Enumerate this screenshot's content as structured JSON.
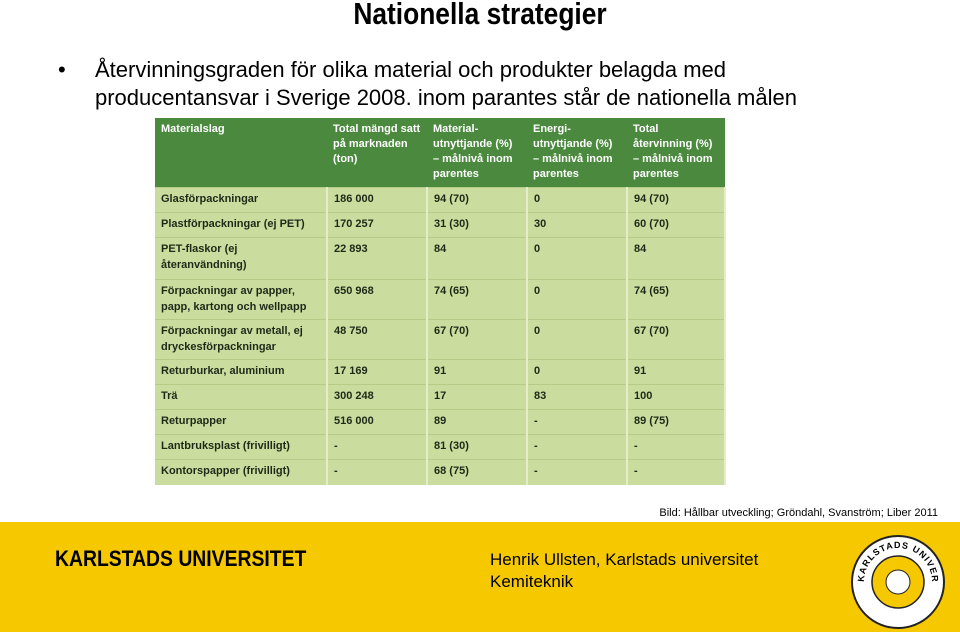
{
  "title": "Nationella strategier",
  "bullet": "Återvinningsgraden för olika material och produkter belagda med producentansvar i Sverige 2008. inom parantes står de nationella målen",
  "table": {
    "header": [
      "Materialslag",
      "Total mängd satt på marknaden (ton)",
      "Material-utnyttjande (%) – målnivå inom parentes",
      "Energi-utnyttjande (%) – målnivå inom parentes",
      "Total återvinning (%) – målnivå inom parentes"
    ],
    "rows": [
      [
        "Glasförpackningar",
        "186 000",
        "94 (70)",
        "0",
        "94 (70)"
      ],
      [
        "Plastförpackningar (ej PET)",
        "170 257",
        "31 (30)",
        "30",
        "60 (70)"
      ],
      [
        "PET-flaskor (ej återanvändning)",
        "22 893",
        "84",
        "0",
        "84"
      ],
      [
        "Förpackningar av papper, papp, kartong och wellpapp",
        "650 968",
        "74 (65)",
        "0",
        "74 (65)"
      ],
      [
        "Förpackningar av metall, ej dryckesförpackningar",
        "48 750",
        "67 (70)",
        "0",
        "67 (70)"
      ],
      [
        "Returburkar, aluminium",
        "17 169",
        "91",
        "0",
        "91"
      ],
      [
        "Trä",
        "300 248",
        "17",
        "83",
        "100"
      ],
      [
        "Returpapper",
        "516 000",
        "89",
        "-",
        "89 (75)"
      ],
      [
        "Lantbruksplast (frivilligt)",
        "-",
        "81 (30)",
        "-",
        "-"
      ],
      [
        "Kontorspapper (frivilligt)",
        "-",
        "68 (75)",
        "-",
        "-"
      ]
    ]
  },
  "caption": "Bild: Hållbar utveckling;  Gröndahl, Svanström; Liber 2011",
  "footer": {
    "university": "KARLSTADS UNIVERSITET",
    "author": "Henrik Ullsten, Karlstads universitet",
    "department": "Kemiteknik",
    "logo_text": "KARLSTADS UNIVERSITET"
  }
}
